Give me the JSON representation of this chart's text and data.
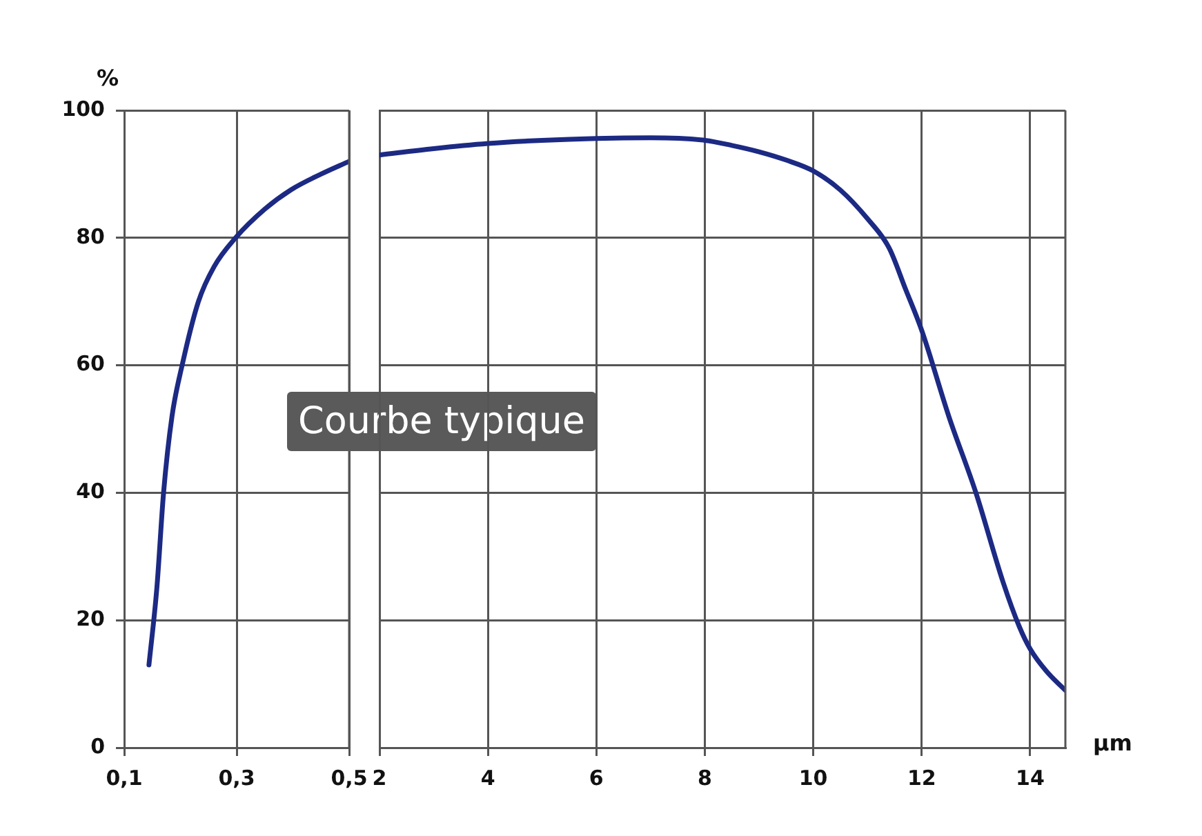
{
  "chart_data": [
    {
      "type": "line",
      "ylabel": "%",
      "annotations": [
        "Courbe typique"
      ],
      "grid": true,
      "marker": "none",
      "line_style": "solid",
      "xlim": [
        0.1,
        0.5
      ],
      "xticks": [
        {
          "value": 0.1,
          "label": "0,1"
        },
        {
          "value": 0.3,
          "label": "0,3"
        },
        {
          "value": 0.5,
          "label": "0,5"
        }
      ],
      "ylim": [
        0,
        100
      ],
      "yticks": [
        0,
        20,
        40,
        60,
        80,
        100
      ],
      "series": [
        {
          "color": "#1c2a84",
          "x": [
            0.144,
            0.158,
            0.17,
            0.185,
            0.203,
            0.232,
            0.26,
            0.298,
            0.35,
            0.396,
            0.45,
            0.5
          ],
          "values": [
            13,
            25,
            40,
            52,
            60,
            70,
            75.5,
            80,
            84.5,
            87.5,
            90,
            92
          ]
        }
      ]
    },
    {
      "type": "line",
      "xlabel": "µm",
      "grid": true,
      "marker": "none",
      "line_style": "solid",
      "tick_labels": "x",
      "xlim": [
        2,
        14.65
      ],
      "xticks": [
        2,
        4,
        6,
        8,
        10,
        12,
        14
      ],
      "ylim": [
        0,
        100
      ],
      "yticks": [
        0,
        20,
        40,
        60,
        80,
        100
      ],
      "series": [
        {
          "color": "#1c2a84",
          "x": [
            2,
            3,
            4,
            5,
            6,
            7,
            8,
            8.5,
            9,
            9.5,
            10,
            10.5,
            11,
            11.4,
            11.7,
            12,
            12.5,
            13,
            13.5,
            13.8,
            14,
            14.3,
            14.65
          ],
          "values": [
            93,
            94,
            94.8,
            95.3,
            95.6,
            95.7,
            95.3,
            94.5,
            93.5,
            92.2,
            90.5,
            87.5,
            83,
            78.4,
            72,
            65.5,
            52,
            40,
            26,
            19,
            15.5,
            12,
            9
          ]
        }
      ]
    }
  ]
}
